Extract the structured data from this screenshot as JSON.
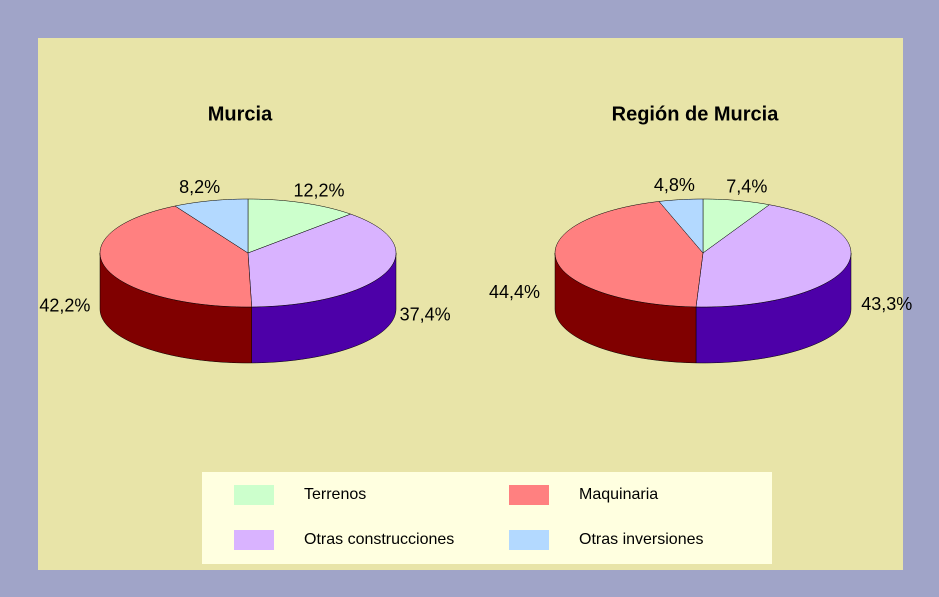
{
  "chart_data": [
    {
      "type": "pie",
      "title": "Murcia",
      "categories": [
        "Terrenos",
        "Otras construcciones",
        "Maquinaria",
        "Otras inversiones"
      ],
      "values": [
        12.2,
        37.4,
        42.2,
        8.2
      ],
      "value_labels": [
        "12,2%",
        "37,4%",
        "42,2%",
        "8,2%"
      ],
      "colors": [
        "#ccffcc",
        "#d9b3ff",
        "#ff8080",
        "#b3d9ff"
      ],
      "side_colors": [
        "#66aa66",
        "#4d00a8",
        "#800000",
        "#5577aa"
      ]
    },
    {
      "type": "pie",
      "title": "Región de Murcia",
      "categories": [
        "Terrenos",
        "Otras construcciones",
        "Maquinaria",
        "Otras inversiones"
      ],
      "values": [
        7.4,
        43.3,
        44.4,
        4.8
      ],
      "value_labels": [
        "7,4%",
        "43,3%",
        "44,4%",
        "4,8%"
      ],
      "colors": [
        "#ccffcc",
        "#d9b3ff",
        "#ff8080",
        "#b3d9ff"
      ],
      "side_colors": [
        "#66aa66",
        "#4d00a8",
        "#800000",
        "#5577aa"
      ]
    }
  ]
}
